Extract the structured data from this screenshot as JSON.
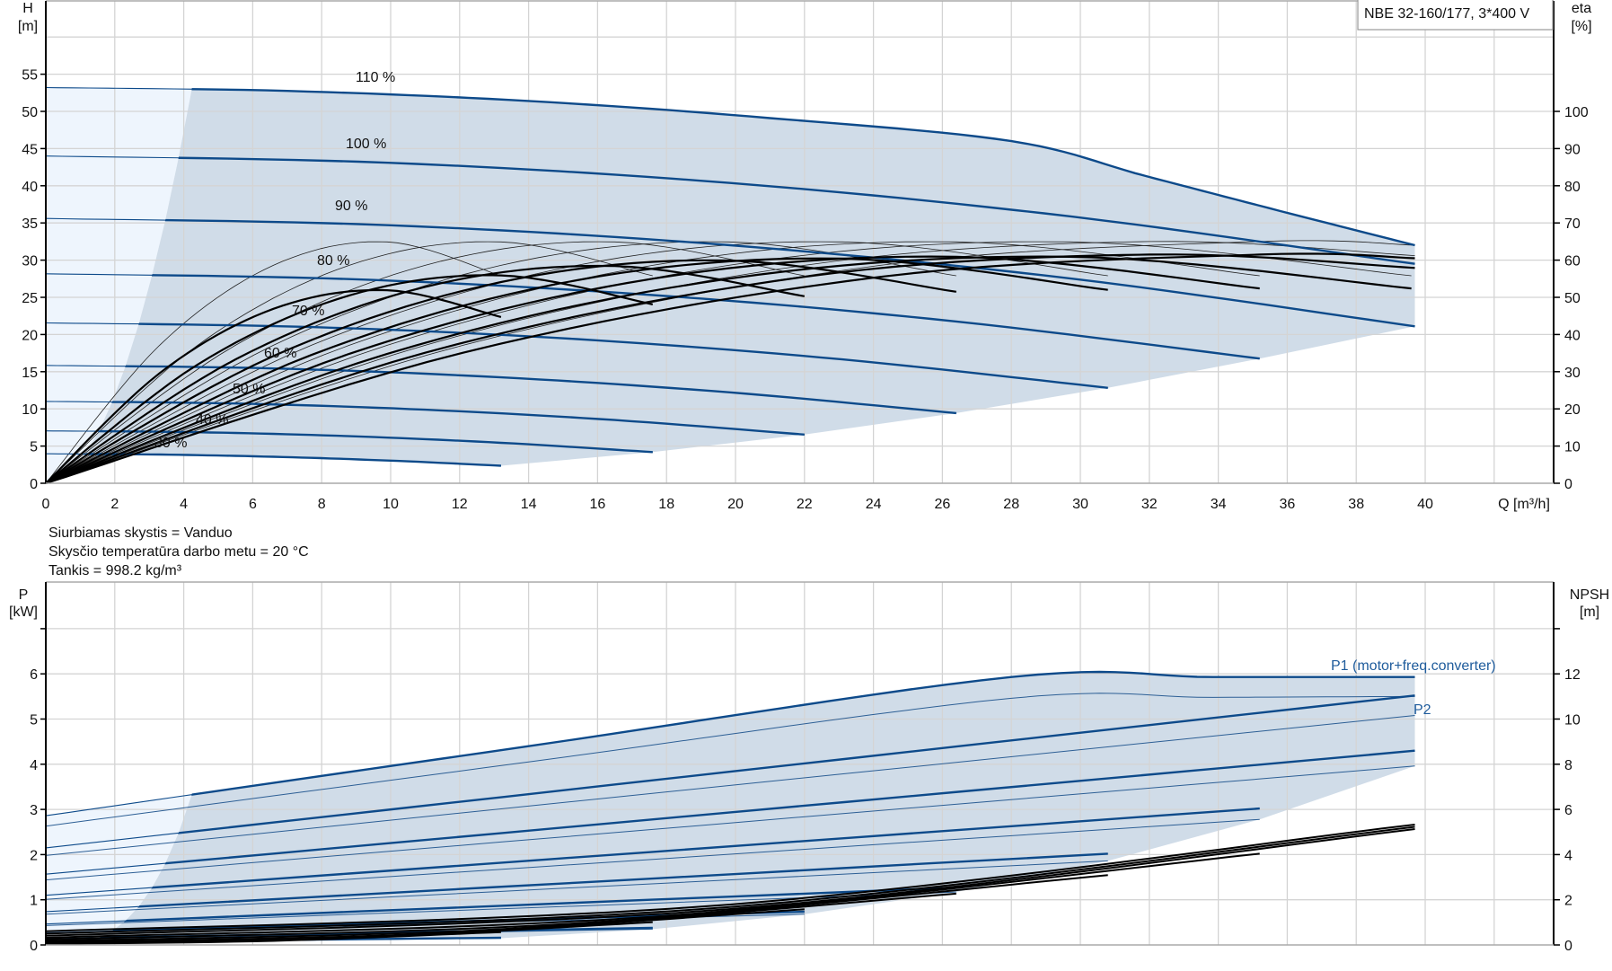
{
  "legend_box": "NBE 32-160/177, 3*400 V",
  "fluid_info": [
    "Siurbiamas skystis = Vanduo",
    "Skysčio temperatūra darbo metu = 20 °C",
    "Tankis = 998.2 kg/m³"
  ],
  "colors": {
    "curve_blue": "#0d4a8a",
    "operating_area": "#d0dce8",
    "extended_area": "#eef5fd",
    "grid": "#d4d4d4",
    "efficiency_npsh": "#000000",
    "label_blue": "#1f5c9c"
  },
  "chart_data": [
    {
      "type": "line",
      "title": "",
      "xlabel": "Q [m³/h]",
      "ylabel": "H",
      "yunit": "[m]",
      "y2label": "eta",
      "y2unit": "[%]",
      "xlim": [
        0,
        43.7
      ],
      "ylim": [
        0,
        65
      ],
      "y2lim": [
        0,
        130
      ],
      "grid": true,
      "xticks": [
        "0",
        "2",
        "4",
        "6",
        "8",
        "10",
        "12",
        "14",
        "16",
        "18",
        "20",
        "22",
        "24",
        "26",
        "28",
        "30",
        "32",
        "34",
        "36",
        "38",
        "40"
      ],
      "yticks": [
        "0",
        "5",
        "10",
        "15",
        "20",
        "25",
        "30",
        "35",
        "40",
        "45",
        "50",
        "55"
      ],
      "y2ticks": [
        "0",
        "10",
        "20",
        "30",
        "40",
        "50",
        "60",
        "70",
        "80",
        "90",
        "100"
      ],
      "h_curves": [
        {
          "name": "110 %",
          "speed_pct": 110,
          "q": [
            0,
            7,
            14,
            21,
            28,
            31.9,
            35.8,
            39.7
          ],
          "h": [
            53.2,
            52.75,
            51.4,
            49.1,
            46.0,
            41.3,
            36.6,
            32.0
          ]
        },
        {
          "name": "100 %",
          "speed_pct": 100,
          "q": [
            0,
            9.925,
            19.85,
            29.775,
            39.7
          ],
          "h": [
            44.0,
            43.09,
            40.37,
            35.84,
            29.5
          ]
        },
        {
          "name": "90 %",
          "speed_pct": 90,
          "q": [
            0,
            9.925,
            19.85,
            29.775,
            39.7
          ],
          "h": [
            35.6,
            34.7,
            32.0,
            27.5,
            21.1
          ]
        },
        {
          "name": "80 %",
          "speed_pct": 80,
          "q": [
            0,
            8.8,
            17.6,
            26.4,
            35.2
          ],
          "h": [
            28.16,
            27.45,
            25.3,
            21.75,
            16.76
          ]
        },
        {
          "name": "70 %",
          "speed_pct": 70,
          "q": [
            0,
            7.7,
            15.4,
            23.1,
            30.8
          ],
          "h": [
            21.56,
            21.0,
            19.38,
            16.65,
            12.83
          ]
        },
        {
          "name": "60 %",
          "speed_pct": 60,
          "q": [
            0,
            6.6,
            13.2,
            19.8,
            26.4
          ],
          "h": [
            15.84,
            15.44,
            14.24,
            12.23,
            9.43
          ]
        },
        {
          "name": "50 %",
          "speed_pct": 50,
          "q": [
            0,
            5.5,
            11,
            16.5,
            22
          ],
          "h": [
            11.0,
            10.72,
            9.89,
            8.5,
            6.55
          ]
        },
        {
          "name": "40 %",
          "speed_pct": 40,
          "q": [
            0,
            4.4,
            8.8,
            13.2,
            17.6
          ],
          "h": [
            7.04,
            6.86,
            6.33,
            5.44,
            4.19
          ]
        },
        {
          "name": "30 %",
          "speed_pct": 30,
          "q": [
            0,
            3.3,
            6.6,
            9.9,
            13.2
          ],
          "h": [
            3.96,
            3.86,
            3.56,
            3.06,
            2.36
          ]
        }
      ],
      "eta_total_curves": [
        {
          "speed_pct": 110,
          "q": [
            0,
            12.1,
            24.2,
            35.2,
            39.7
          ],
          "eta": [
            0,
            35.1,
            55.5,
            61.5,
            60.5
          ]
        },
        {
          "speed_pct": 100,
          "q": [
            0,
            11,
            22,
            32,
            39.7
          ],
          "eta": [
            0,
            35.1,
            55.5,
            61.5,
            57.9
          ]
        },
        {
          "speed_pct": 90,
          "q": [
            0,
            9.9,
            19.8,
            29.7,
            39.6
          ],
          "eta": [
            0,
            34.8,
            55.0,
            60.9,
            52.4
          ]
        },
        {
          "speed_pct": 80,
          "q": [
            0,
            8.8,
            17.6,
            26.4,
            35.2
          ],
          "eta": [
            0,
            34.8,
            55.0,
            60.9,
            52.4
          ]
        },
        {
          "speed_pct": 70,
          "q": [
            0,
            7.7,
            15.4,
            23.1,
            30.8
          ],
          "eta": [
            0,
            34.5,
            54.6,
            60.4,
            52.0
          ]
        },
        {
          "speed_pct": 60,
          "q": [
            0,
            6.6,
            13.2,
            19.8,
            26.4
          ],
          "eta": [
            0,
            34.2,
            54.1,
            59.9,
            51.5
          ]
        },
        {
          "speed_pct": 50,
          "q": [
            0,
            5.5,
            11,
            16.5,
            22
          ],
          "eta": [
            0,
            33.3,
            52.8,
            58.4,
            50.3
          ]
        },
        {
          "speed_pct": 40,
          "q": [
            0,
            4.4,
            8.8,
            13.2,
            17.6
          ],
          "eta": [
            0,
            31.9,
            50.5,
            55.9,
            48.1
          ]
        },
        {
          "speed_pct": 30,
          "q": [
            0,
            3.3,
            6.6,
            9.9,
            13.2
          ],
          "eta": [
            0,
            29.6,
            46.9,
            51.9,
            44.7
          ]
        }
      ],
      "eta_pump_curves": [
        {
          "speed_pct": 110,
          "q": [
            0,
            12.1,
            24.2,
            35.2,
            39.7
          ],
          "eta": [
            0,
            37.1,
            58.6,
            65.0,
            64.0
          ]
        },
        {
          "speed_pct": 100,
          "q": [
            0,
            11,
            22,
            32,
            39.7
          ],
          "eta": [
            0,
            37.1,
            58.6,
            65.0,
            61.2
          ]
        },
        {
          "speed_pct": 90,
          "q": [
            0,
            9.9,
            19.8,
            29.7,
            39.6
          ],
          "eta": [
            0,
            37.1,
            58.6,
            64.9,
            55.8
          ]
        },
        {
          "speed_pct": 80,
          "q": [
            0,
            8.8,
            17.6,
            26.4,
            35.2
          ],
          "eta": [
            0,
            37.1,
            58.6,
            64.9,
            55.8
          ]
        },
        {
          "speed_pct": 70,
          "q": [
            0,
            7.7,
            15.4,
            23.1,
            30.8
          ],
          "eta": [
            0,
            37.1,
            58.6,
            64.9,
            55.8
          ]
        },
        {
          "speed_pct": 60,
          "q": [
            0,
            6.6,
            13.2,
            19.8,
            26.4
          ],
          "eta": [
            0,
            37.1,
            58.6,
            64.9,
            55.8
          ]
        },
        {
          "speed_pct": 50,
          "q": [
            0,
            5.5,
            11,
            16.5,
            22
          ],
          "eta": [
            0,
            37.1,
            58.6,
            64.9,
            55.8
          ]
        },
        {
          "speed_pct": 40,
          "q": [
            0,
            4.4,
            8.8,
            13.2,
            17.6
          ],
          "eta": [
            0,
            37.1,
            58.6,
            64.9,
            55.8
          ]
        },
        {
          "speed_pct": 30,
          "q": [
            0,
            3.3,
            6.6,
            9.9,
            13.2
          ],
          "eta": [
            0,
            37.1,
            58.6,
            64.9,
            55.8
          ]
        }
      ]
    },
    {
      "type": "line",
      "title": "",
      "ylabel": "P",
      "yunit": "[kW]",
      "y2label": "NPSH",
      "y2unit": "[m]",
      "xlim": [
        0,
        43.7
      ],
      "ylim": [
        0,
        8
      ],
      "y2lim": [
        0,
        16
      ],
      "grid": true,
      "yticks": [
        "0",
        "1",
        "2",
        "3",
        "4",
        "5",
        "6"
      ],
      "y2ticks": [
        "0",
        "2",
        "4",
        "6",
        "8",
        "10",
        "12"
      ],
      "p1_label": "P1 (motor+freq.converter)",
      "p2_label": "P2",
      "p1_curves": [
        {
          "speed_pct": 110,
          "q": [
            0,
            14,
            28,
            33.85,
            39.7
          ],
          "p": [
            2.86,
            4.4,
            5.93,
            5.93,
            5.93
          ]
        },
        {
          "speed_pct": 100,
          "q": [
            0,
            39.7
          ],
          "p": [
            2.15,
            5.52
          ]
        },
        {
          "speed_pct": 90,
          "q": [
            0,
            39.7
          ],
          "p": [
            1.567,
            4.3
          ]
        },
        {
          "speed_pct": 80,
          "q": [
            0,
            35.2
          ],
          "p": [
            1.1,
            3.02
          ]
        },
        {
          "speed_pct": 70,
          "q": [
            0,
            30.8
          ],
          "p": [
            0.737,
            2.02
          ]
        },
        {
          "speed_pct": 60,
          "q": [
            0,
            26.4
          ],
          "p": [
            0.464,
            1.27
          ]
        },
        {
          "speed_pct": 50,
          "q": [
            0,
            22
          ],
          "p": [
            0.269,
            0.736
          ]
        },
        {
          "speed_pct": 40,
          "q": [
            0,
            17.6
          ],
          "p": [
            0.138,
            0.377
          ]
        },
        {
          "speed_pct": 30,
          "q": [
            0,
            13.2
          ],
          "p": [
            0.058,
            0.159
          ]
        }
      ],
      "p2_curves": [
        {
          "speed_pct": 110,
          "q": [
            0,
            14,
            28,
            33.85,
            39.7
          ],
          "p": [
            2.63,
            4.05,
            5.46,
            5.48,
            5.5
          ]
        },
        {
          "speed_pct": 100,
          "q": [
            0,
            39.7
          ],
          "p": [
            1.98,
            5.08
          ]
        },
        {
          "speed_pct": 90,
          "q": [
            0,
            39.7
          ],
          "p": [
            1.44,
            3.96
          ]
        },
        {
          "speed_pct": 80,
          "q": [
            0,
            35.2
          ],
          "p": [
            1.01,
            2.78
          ]
        },
        {
          "speed_pct": 70,
          "q": [
            0,
            30.8
          ],
          "p": [
            0.68,
            1.86
          ]
        },
        {
          "speed_pct": 60,
          "q": [
            0,
            26.4
          ],
          "p": [
            0.43,
            1.17
          ]
        },
        {
          "speed_pct": 50,
          "q": [
            0,
            22
          ],
          "p": [
            0.25,
            0.68
          ]
        },
        {
          "speed_pct": 40,
          "q": [
            0,
            17.6
          ],
          "p": [
            0.13,
            0.35
          ]
        },
        {
          "speed_pct": 30,
          "q": [
            0,
            13.2
          ],
          "p": [
            0.05,
            0.15
          ]
        }
      ],
      "npsh_curves": [
        {
          "speed_pct": 110,
          "q": [
            0,
            19.85,
            39.7
          ],
          "npsh": [
            0.605,
            1.79,
            5.33
          ]
        },
        {
          "speed_pct": 100,
          "q": [
            0,
            19.85,
            39.7
          ],
          "npsh": [
            0.5,
            1.68,
            5.23
          ]
        },
        {
          "speed_pct": 90,
          "q": [
            0,
            19.85,
            39.7
          ],
          "npsh": [
            0.405,
            1.59,
            5.13
          ]
        },
        {
          "speed_pct": 80,
          "q": [
            0,
            17.6,
            35.2
          ],
          "npsh": [
            0.32,
            1.25,
            4.04
          ]
        },
        {
          "speed_pct": 70,
          "q": [
            0,
            15.4,
            30.8
          ],
          "npsh": [
            0.245,
            0.96,
            3.09
          ]
        },
        {
          "speed_pct": 60,
          "q": [
            0,
            13.2,
            26.4
          ],
          "npsh": [
            0.18,
            0.7,
            2.27
          ]
        },
        {
          "speed_pct": 50,
          "q": [
            0,
            11,
            22
          ],
          "npsh": [
            0.125,
            0.49,
            1.58
          ]
        },
        {
          "speed_pct": 40,
          "q": [
            0,
            8.8,
            17.6
          ],
          "npsh": [
            0.08,
            0.31,
            1.01
          ]
        },
        {
          "speed_pct": 30,
          "q": [
            0,
            6.6,
            13.2
          ],
          "npsh": [
            0.045,
            0.18,
            0.57
          ]
        }
      ]
    }
  ]
}
